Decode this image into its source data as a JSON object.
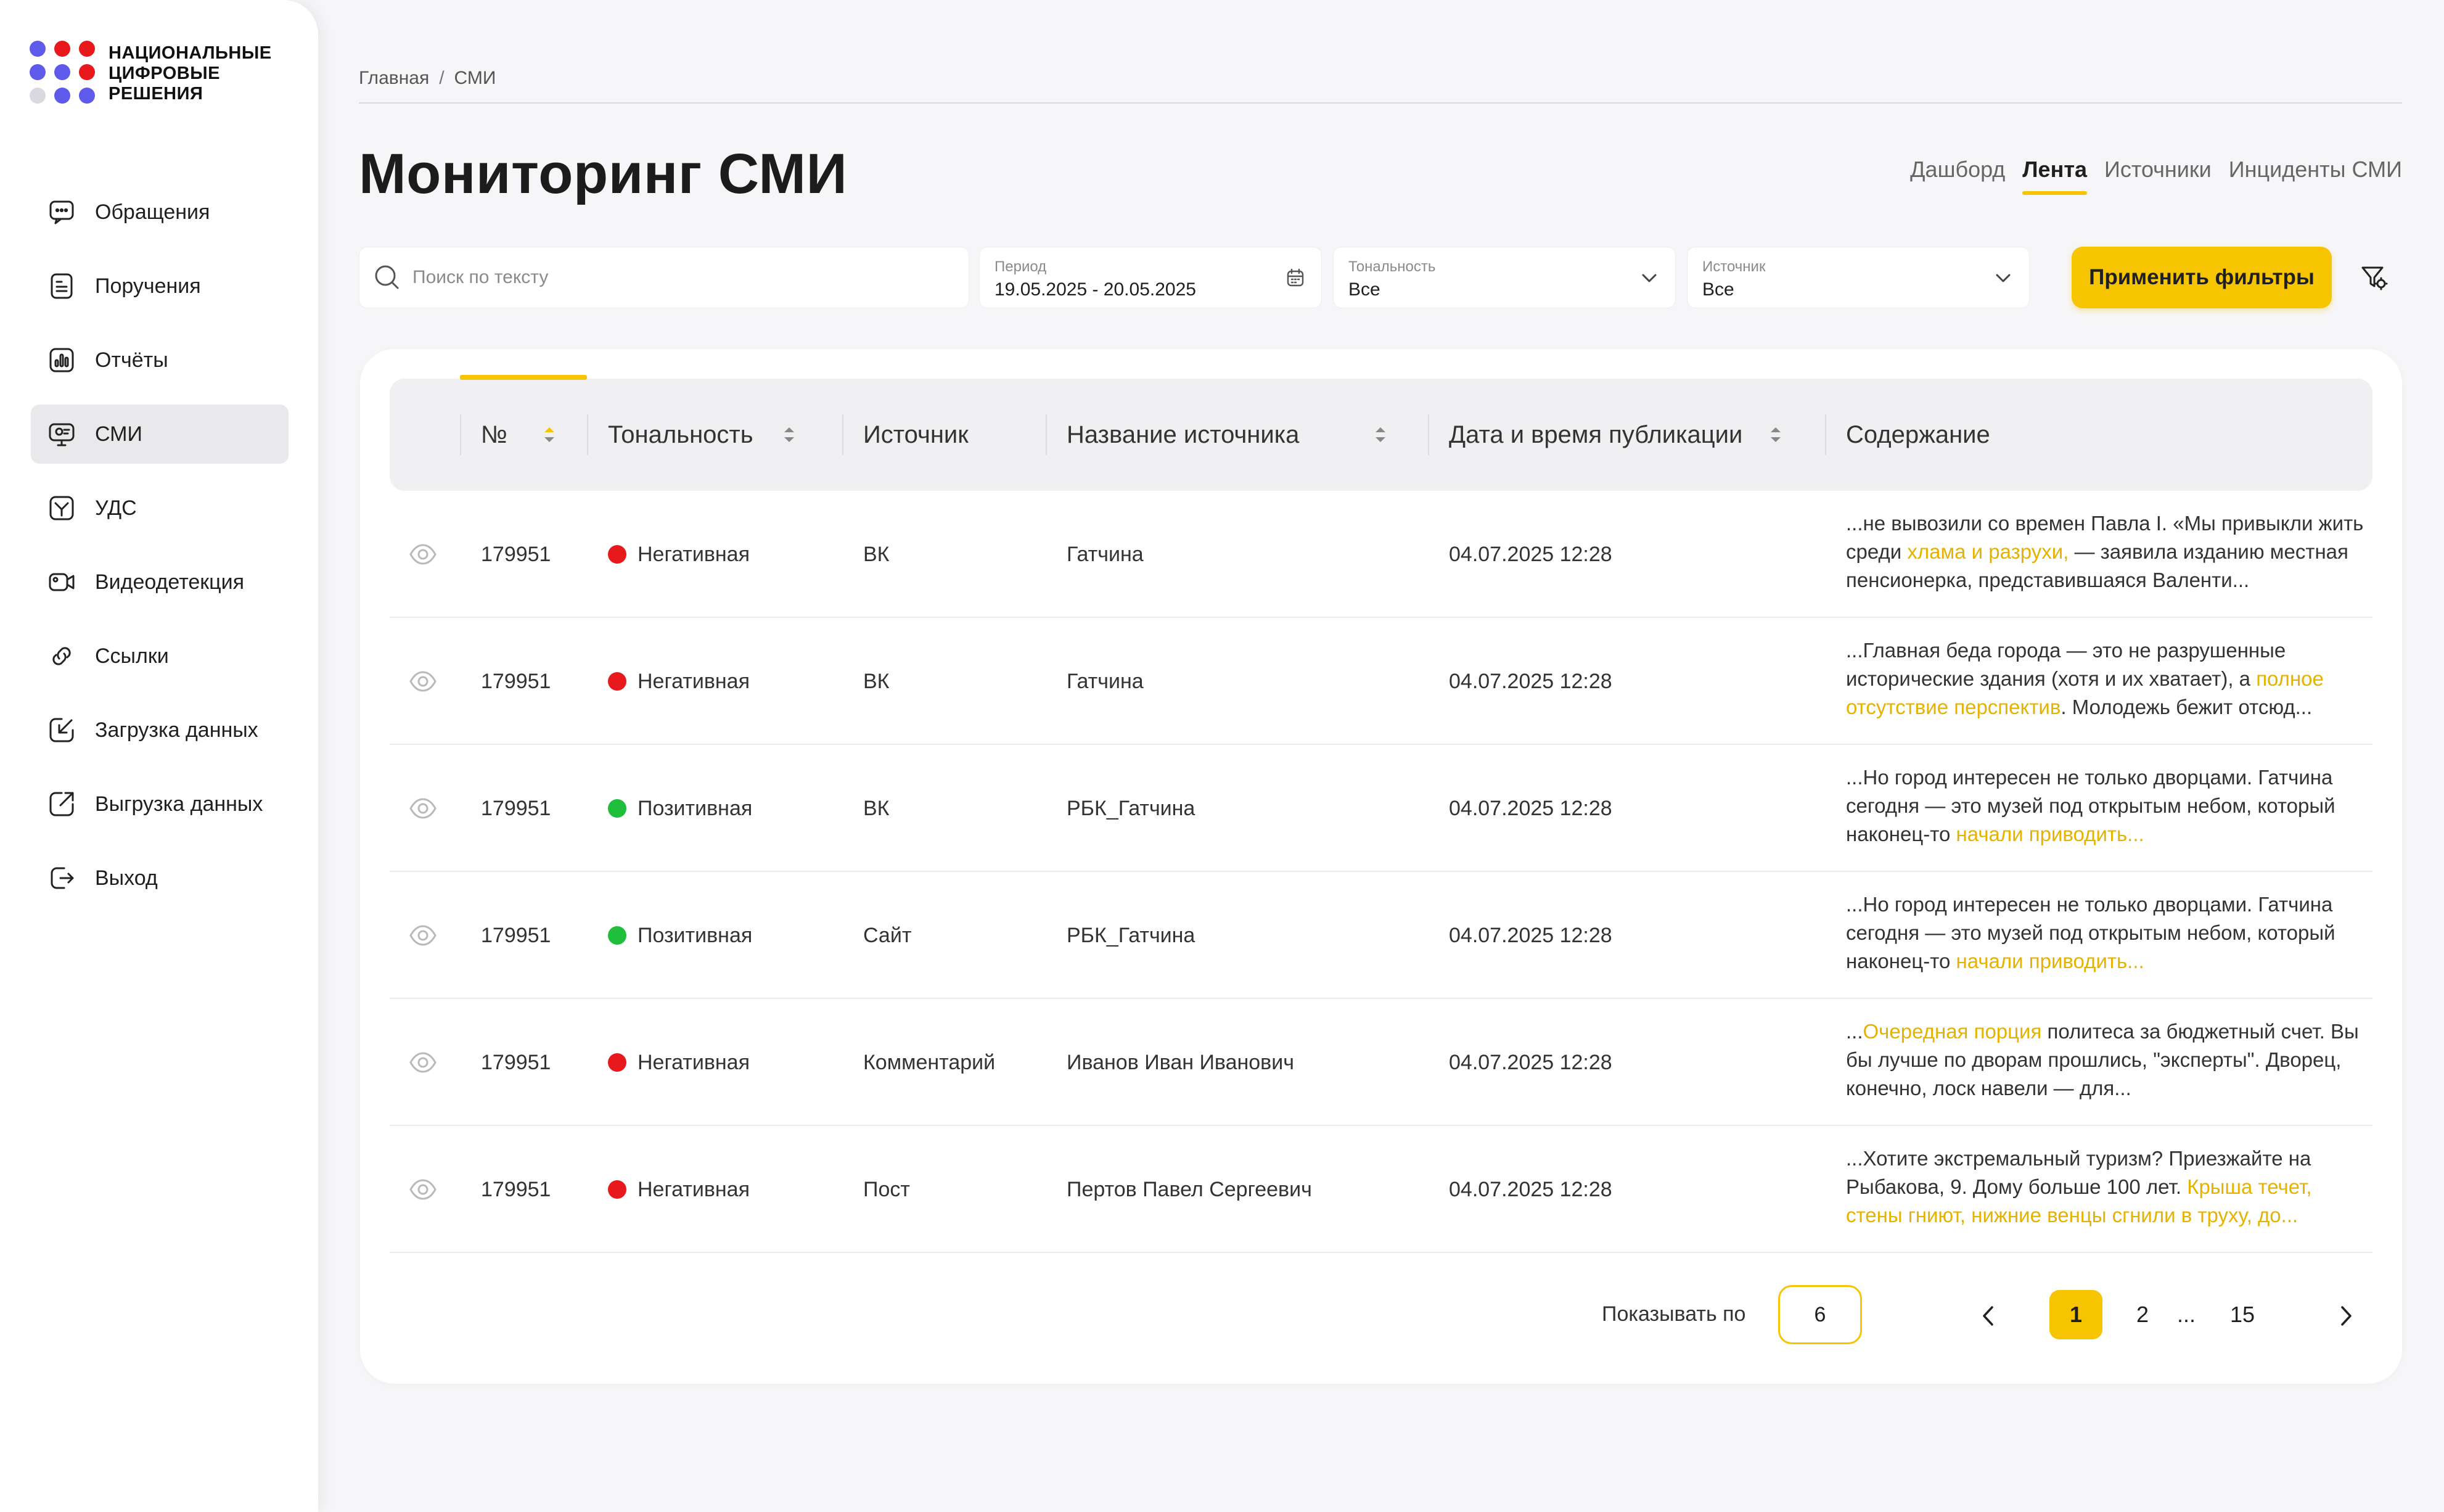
{
  "brand": {
    "name_lines": [
      "НАЦИОНАЛЬНЫЕ",
      "ЦИФРОВЫЕ",
      "РЕШЕНИЯ"
    ],
    "dot_colors": [
      "#5f5bea",
      "#e8191d",
      "#e8191d",
      "#5f5bea",
      "#5f5bea",
      "#e8191d",
      "#d9d9e0",
      "#5f5bea",
      "#5f5bea"
    ]
  },
  "sidebar": {
    "items": [
      {
        "label": "Обращения",
        "icon": "message-icon"
      },
      {
        "label": "Поручения",
        "icon": "document-icon"
      },
      {
        "label": "Отчёты",
        "icon": "chart-icon"
      },
      {
        "label": "СМИ",
        "icon": "media-icon",
        "active": true
      },
      {
        "label": "УДС",
        "icon": "road-icon"
      },
      {
        "label": "Видеодетекция",
        "icon": "video-icon"
      },
      {
        "label": "Ссылки",
        "icon": "link-icon"
      },
      {
        "label": "Загрузка данных",
        "icon": "upload-icon"
      },
      {
        "label": "Выгрузка данных",
        "icon": "export-icon"
      },
      {
        "label": "Выход",
        "icon": "logout-icon"
      }
    ]
  },
  "breadcrumb": {
    "home": "Главная",
    "sep": "/",
    "current": "СМИ"
  },
  "page_title": "Мониторинг СМИ",
  "tabs": [
    {
      "label": "Дашборд"
    },
    {
      "label": "Лента",
      "active": true
    },
    {
      "label": "Источники"
    },
    {
      "label": "Инциденты СМИ"
    }
  ],
  "filters": {
    "search_placeholder": "Поиск по тексту",
    "period": {
      "label": "Период",
      "value": "19.05.2025 - 20.05.2025"
    },
    "tone": {
      "label": "Тональность",
      "value": "Все"
    },
    "source": {
      "label": "Источник",
      "value": "Все"
    },
    "apply_label": "Применить фильтры"
  },
  "table": {
    "headers": {
      "num": "№",
      "tone": "Тональность",
      "source": "Источник",
      "source_name": "Название источника",
      "date": "Дата и время публикации",
      "content": "Содержание"
    },
    "rows": [
      {
        "num": "179951",
        "tone": "Негативная",
        "tone_color": "#e8191d",
        "source": "ВК",
        "source_name": "Гатчина",
        "date": "04.07.2025 12:28",
        "content_parts": [
          {
            "t": "...не вывозили со времен Павла I. «Мы привыкли жить среди ",
            "hl": false
          },
          {
            "t": "хлама и разрухи,",
            "hl": true
          },
          {
            "t": " — заявила изданию местная пенсионерка, представившаяся Валенти...",
            "hl": false
          }
        ]
      },
      {
        "num": "179951",
        "tone": "Негативная",
        "tone_color": "#e8191d",
        "source": "ВК",
        "source_name": "Гатчина",
        "date": "04.07.2025 12:28",
        "content_parts": [
          {
            "t": "...Главная беда города — это не разрушенные исторические здания (хотя и их хватает), а ",
            "hl": false
          },
          {
            "t": "полное отсутствие перспектив",
            "hl": true
          },
          {
            "t": ". Молодежь бежит отсюд...",
            "hl": false
          }
        ]
      },
      {
        "num": "179951",
        "tone": "Позитивная",
        "tone_color": "#1fbe3b",
        "source": "ВК",
        "source_name": "РБК_Гатчина",
        "date": "04.07.2025 12:28",
        "content_parts": [
          {
            "t": "...Но город интересен не только дворцами. Гатчина сегодня — это музей под открытым небом, который наконец-то ",
            "hl": false
          },
          {
            "t": "начали приводить...",
            "hl": true
          }
        ]
      },
      {
        "num": "179951",
        "tone": "Позитивная",
        "tone_color": "#1fbe3b",
        "source": "Сайт",
        "source_name": "РБК_Гатчина",
        "date": "04.07.2025 12:28",
        "content_parts": [
          {
            "t": "...Но город интересен не только дворцами. Гатчина сегодня — это музей под открытым небом, который наконец-то ",
            "hl": false
          },
          {
            "t": "начали приводить...",
            "hl": true
          }
        ]
      },
      {
        "num": "179951",
        "tone": "Негативная",
        "tone_color": "#e8191d",
        "source": "Комментарий",
        "source_name": "Иванов Иван Иванович",
        "date": "04.07.2025 12:28",
        "content_parts": [
          {
            "t": "...",
            "hl": false
          },
          {
            "t": "Очередная порция",
            "hl": true
          },
          {
            "t": " политеса за бюджетный счет. Вы бы лучше по дворам прошлись, \"эксперты\". Дворец, конечно, лоск навели — для...",
            "hl": false
          }
        ]
      },
      {
        "num": "179951",
        "tone": "Негативная",
        "tone_color": "#e8191d",
        "source": "Пост",
        "source_name": "Пертов Павел Сергеевич",
        "date": "04.07.2025 12:28",
        "content_parts": [
          {
            "t": "...Хотите экстремальный туризм? Приезжайте на Рыбакова, 9. Дому больше 100 лет. ",
            "hl": false
          },
          {
            "t": "Крыша течет, стены гниют, нижние венцы сгнили в труху, до...",
            "hl": true
          }
        ]
      }
    ]
  },
  "pagination": {
    "per_page_label": "Показывать по",
    "per_page": "6",
    "pages": [
      "1",
      "2",
      "...",
      "15"
    ],
    "current": "1"
  },
  "colors": {
    "accent": "#f6c400",
    "highlight_text": "#e6b200",
    "negative": "#e8191d",
    "positive": "#1fbe3b"
  }
}
